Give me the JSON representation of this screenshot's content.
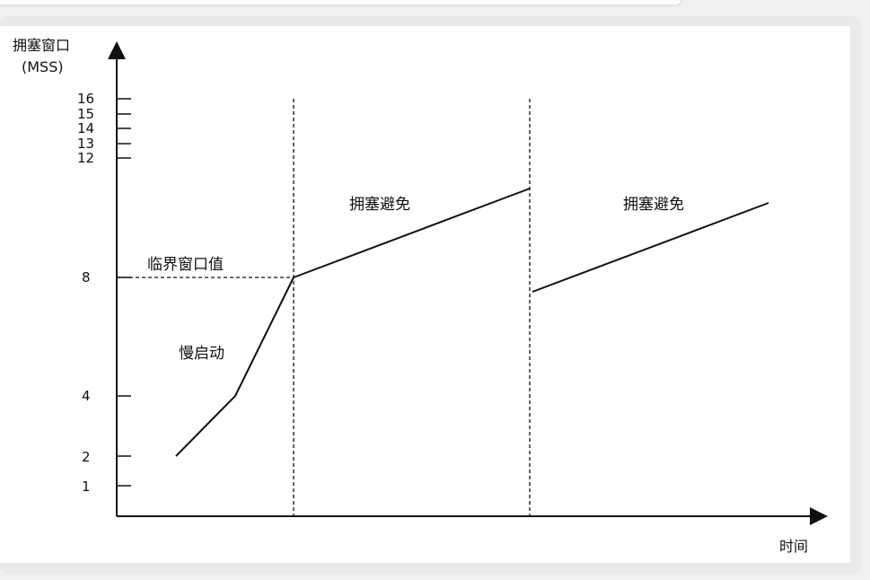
{
  "chart_data": {
    "type": "line",
    "ylabel_line1": "拥塞窗口",
    "ylabel_line2": "(MSS)",
    "xlabel": "时间",
    "y_ticks": [
      "16",
      "15",
      "14",
      "13",
      "12",
      "8",
      "4",
      "2",
      "1"
    ],
    "annotations": {
      "threshold": "临界窗口值",
      "slow_start": "慢启动",
      "congestion_avoidance_1": "拥塞避免",
      "congestion_avoidance_2": "拥塞避免"
    },
    "series": [
      {
        "points": [
          [
            1,
            2
          ],
          [
            2,
            4
          ],
          [
            3,
            8
          ]
        ]
      },
      {
        "points": [
          [
            3,
            8
          ],
          [
            7,
            11
          ]
        ]
      },
      {
        "points": [
          [
            7,
            7.5
          ],
          [
            11,
            10.5
          ]
        ]
      }
    ],
    "threshold_value": 8,
    "phase_boundaries_x": [
      3,
      7
    ],
    "xlim": [
      0,
      12
    ],
    "ylim": [
      0,
      17
    ],
    "colors": {
      "line": "#111111",
      "background": "#ffffff",
      "frame": "#e9e9e9"
    }
  }
}
